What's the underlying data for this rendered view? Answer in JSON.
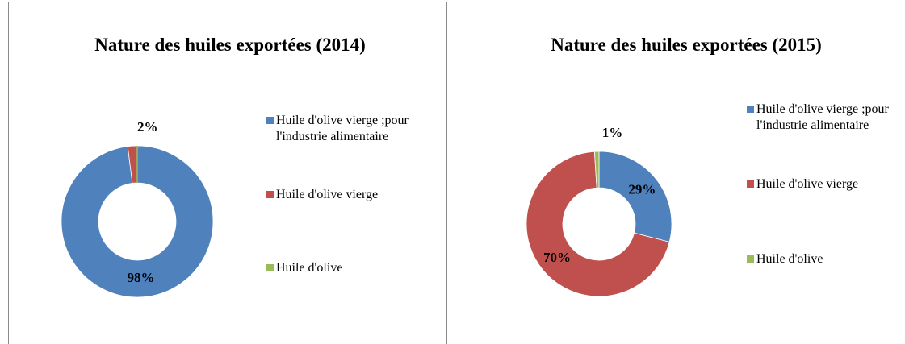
{
  "chart_data": [
    {
      "type": "donut",
      "title": "Nature des huiles exportées (2014)",
      "categories": [
        "Huile d'olive vierge ;pour l'industrie alimentaire",
        "Huile d'olive vierge",
        "Huile d'olive"
      ],
      "values": [
        98,
        2,
        0
      ],
      "value_labels": [
        "98%",
        "2%",
        null
      ],
      "colors": [
        "#4f81bd",
        "#c0504d",
        "#9bbb59"
      ]
    },
    {
      "type": "donut",
      "title": "Nature des huiles exportées (2015)",
      "categories": [
        "Huile d'olive vierge ;pour l'industrie alimentaire",
        "Huile d'olive vierge",
        "Huile d'olive"
      ],
      "values": [
        29,
        70,
        1
      ],
      "value_labels": [
        "29%",
        "70%",
        "1%"
      ],
      "colors": [
        "#4f81bd",
        "#c0504d",
        "#9bbb59"
      ]
    }
  ]
}
